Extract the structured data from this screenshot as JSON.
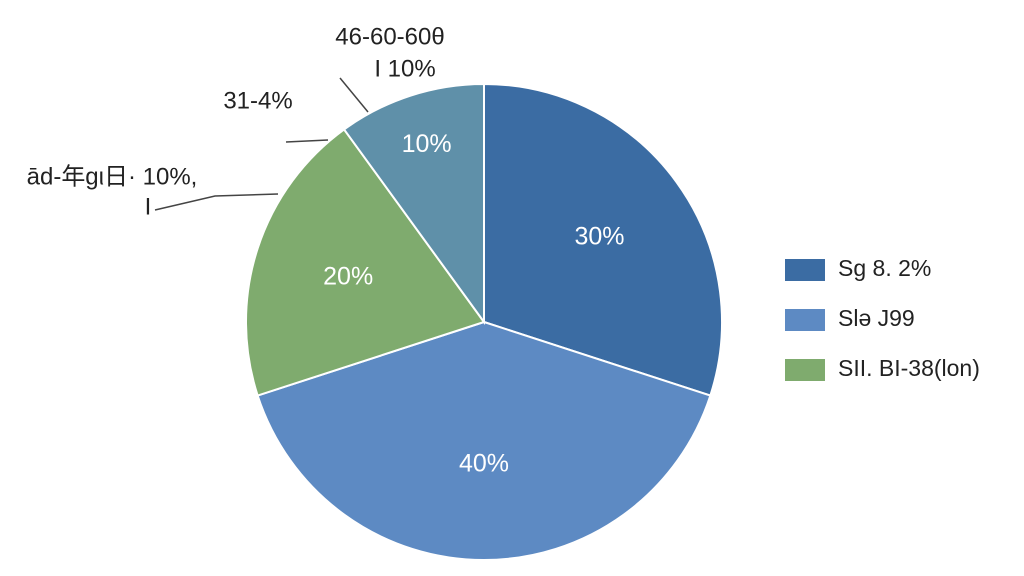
{
  "chart_data": {
    "type": "pie",
    "values": [
      30,
      40,
      20,
      10
    ],
    "value_labels": [
      "30%",
      "40%",
      "20%",
      "10%"
    ],
    "colors": [
      "#3b6ca3",
      "#5d8ac3",
      "#7fab6e",
      "#5f90a9"
    ],
    "annotations": [
      "46-60-60θ",
      "I 10%",
      "31-4%",
      "ād-年gι日· 10%,",
      "I"
    ],
    "legend": [
      {
        "label": "Sg 8. 2%",
        "color": "#3b6ca3"
      },
      {
        "label": "Slə J99",
        "color": "#5d8ac3"
      },
      {
        "label": "SΙΙ. BI-38(lon)",
        "color": "#7fab6e"
      }
    ]
  }
}
